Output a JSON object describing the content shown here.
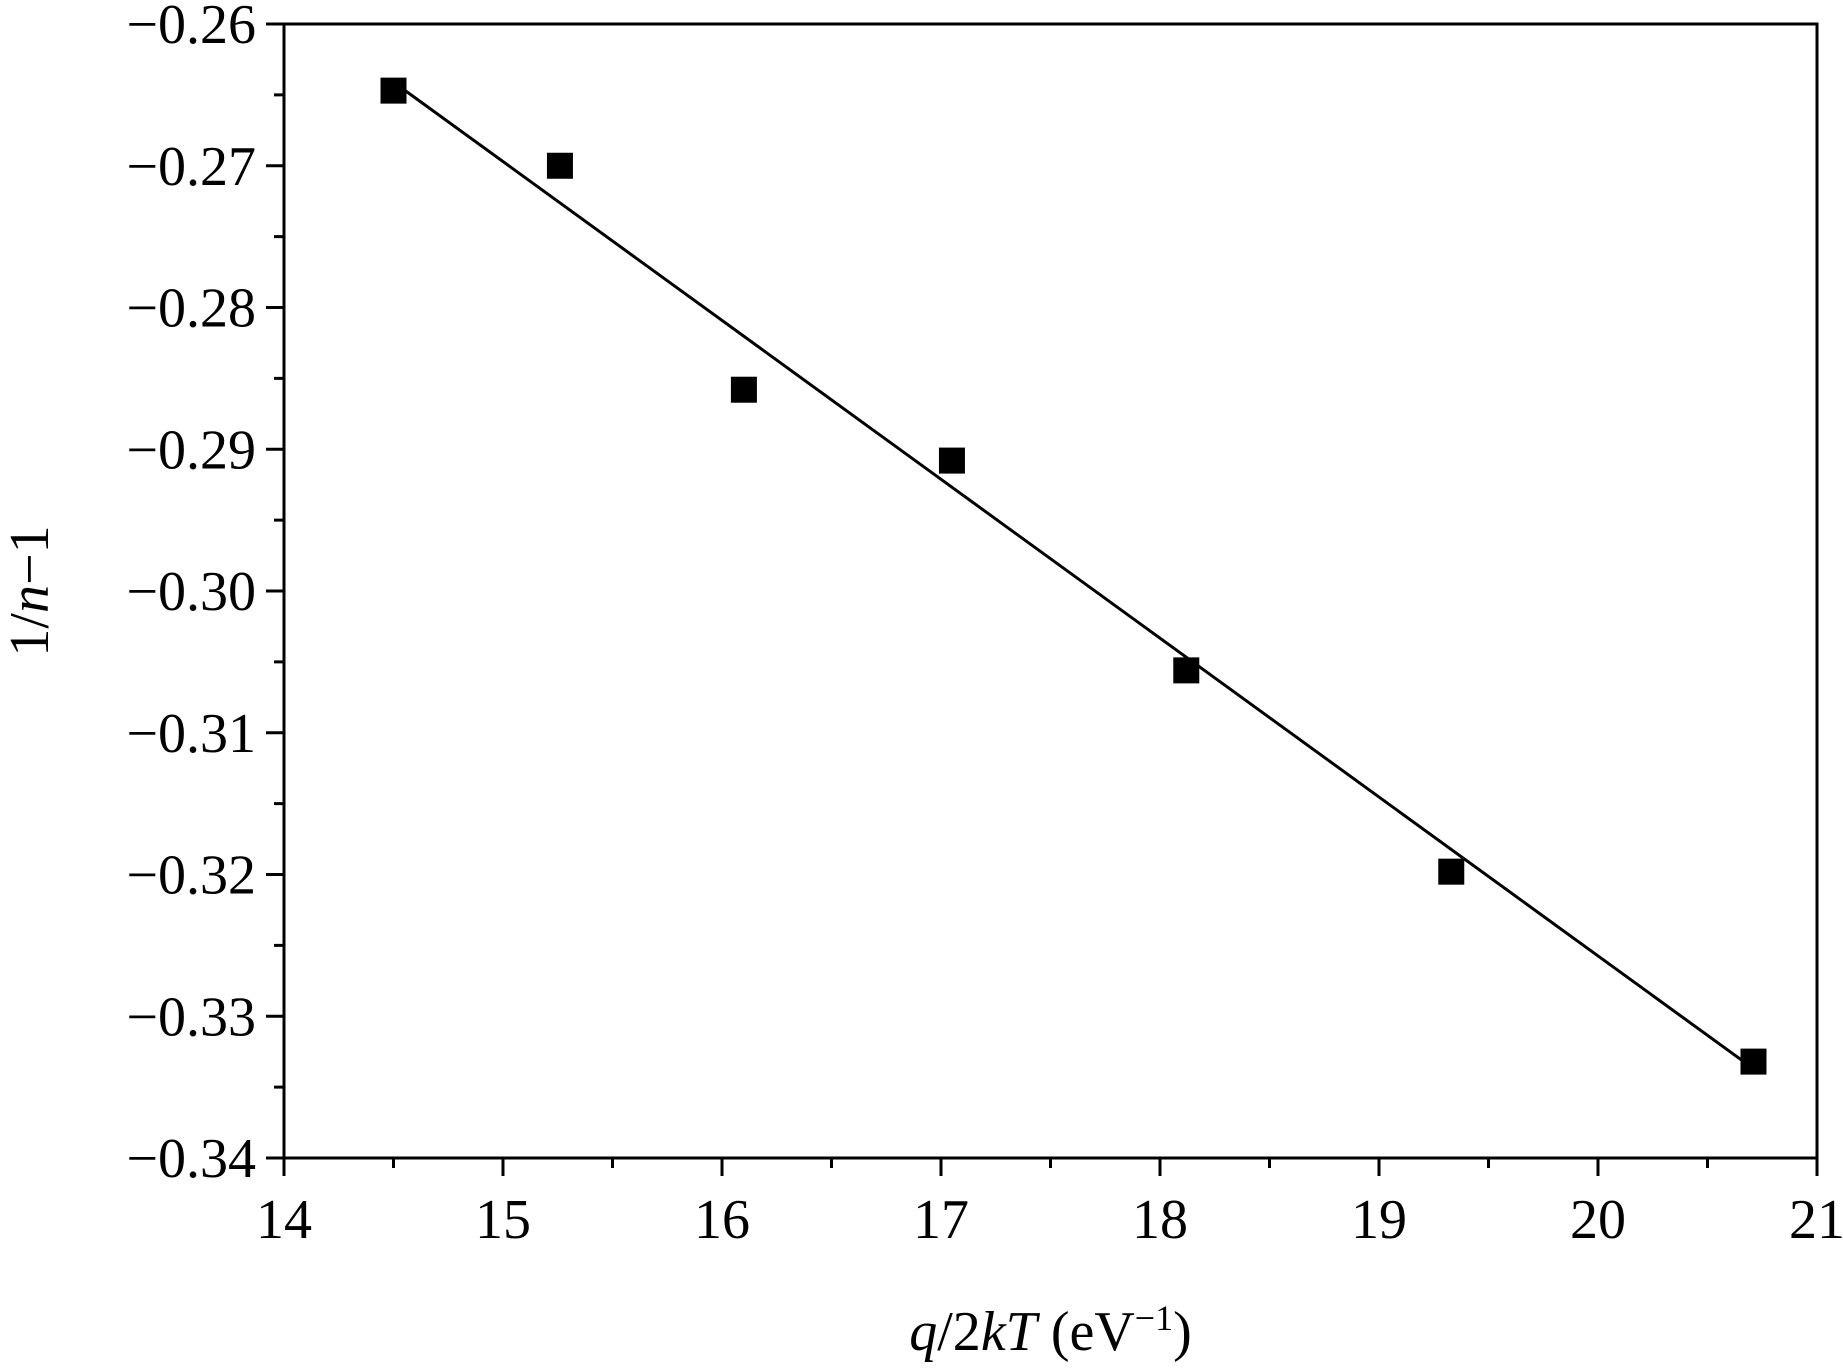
{
  "chart_data": {
    "type": "scatter",
    "title": "",
    "xlabel": {
      "parts": [
        {
          "text": "q",
          "style": "italic"
        },
        {
          "text": "/2",
          "style": "normal"
        },
        {
          "text": "kT",
          "style": "italic"
        },
        {
          "text": " (eV",
          "style": "normal"
        },
        {
          "text": "−1",
          "style": "sup"
        },
        {
          "text": ")",
          "style": "normal"
        }
      ]
    },
    "ylabel": {
      "parts": [
        {
          "text": "1/",
          "style": "normal"
        },
        {
          "text": "n",
          "style": "italic"
        },
        {
          "text": "−1",
          "style": "normal"
        }
      ]
    },
    "xlim": [
      14,
      21
    ],
    "ylim": [
      -0.34,
      -0.26
    ],
    "x_ticks": [
      14,
      15,
      16,
      17,
      18,
      19,
      20,
      21
    ],
    "x_tick_labels": [
      "14",
      "15",
      "16",
      "17",
      "18",
      "19",
      "20",
      "21"
    ],
    "x_minor_step": 0.5,
    "y_ticks": [
      -0.26,
      -0.27,
      -0.28,
      -0.29,
      -0.3,
      -0.31,
      -0.32,
      -0.33,
      -0.34
    ],
    "y_tick_labels": [
      "−0.26",
      "−0.27",
      "−0.28",
      "−0.29",
      "−0.30",
      "−0.31",
      "−0.32",
      "−0.33",
      "−0.34"
    ],
    "y_minor_step": 0.005,
    "grid": false,
    "legend": "none",
    "series": [
      {
        "kind": "points",
        "marker": "square",
        "color": "#000000",
        "x": [
          14.5,
          15.26,
          16.1,
          17.05,
          18.12,
          19.33,
          20.71
        ],
        "y": [
          -0.2647,
          -0.27,
          -0.2858,
          -0.2908,
          -0.3056,
          -0.3198,
          -0.3332
        ]
      },
      {
        "kind": "fit-line",
        "color": "#000000",
        "x": [
          14.5,
          20.71
        ],
        "y": [
          -0.2641,
          -0.3337
        ]
      }
    ]
  }
}
